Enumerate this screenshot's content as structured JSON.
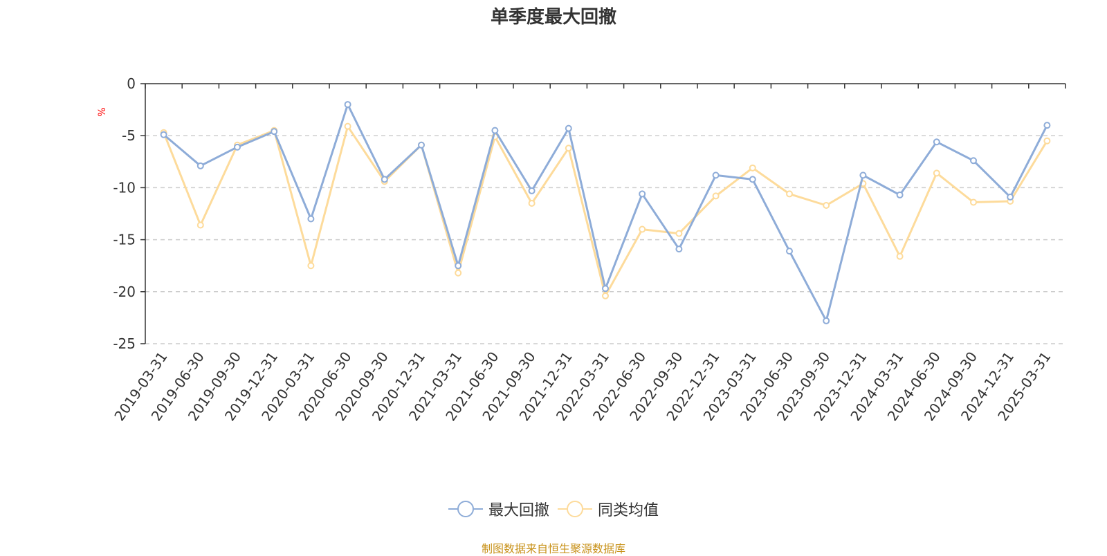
{
  "title": "单季度最大回撤",
  "source_text": "制图数据来自恒生聚源数据库",
  "colors": {
    "series1": "#8eacd8",
    "series2": "#fddb9b",
    "title": "#333333",
    "axis": "#333333",
    "grid": "#cccccc",
    "unit": "#ff0000",
    "source": "#c8921a"
  },
  "chart_data": {
    "type": "line",
    "ylabel": "%",
    "ylim": [
      -25,
      0
    ],
    "yticks": [
      0,
      -5,
      -10,
      -15,
      -20,
      -25
    ],
    "grid": true,
    "legend_position": "bottom",
    "x": [
      "2019-03-31",
      "2019-06-30",
      "2019-09-30",
      "2019-12-31",
      "2020-03-31",
      "2020-06-30",
      "2020-09-30",
      "2020-12-31",
      "2021-03-31",
      "2021-06-30",
      "2021-09-30",
      "2021-12-31",
      "2022-03-31",
      "2022-06-30",
      "2022-09-30",
      "2022-12-31",
      "2023-03-31",
      "2023-06-30",
      "2023-09-30",
      "2023-12-31",
      "2024-03-31",
      "2024-06-30",
      "2024-09-30",
      "2024-12-31",
      "2025-03-31"
    ],
    "series": [
      {
        "name": "最大回撤",
        "values": [
          -4.9,
          -7.9,
          -6.1,
          -4.6,
          -13.0,
          -2.0,
          -9.2,
          -5.9,
          -17.5,
          -4.5,
          -10.3,
          -4.3,
          -19.7,
          -10.6,
          -15.9,
          -8.8,
          -9.2,
          -16.1,
          -22.8,
          -8.8,
          -10.7,
          -5.6,
          -7.4,
          -10.9,
          -4.0
        ]
      },
      {
        "name": "同类均值",
        "values": [
          -4.7,
          -13.6,
          -5.9,
          -4.5,
          -17.5,
          -4.1,
          -9.4,
          -5.9,
          -18.2,
          -5.1,
          -11.5,
          -6.2,
          -20.4,
          -14.0,
          -14.4,
          -10.8,
          -8.1,
          -10.6,
          -11.7,
          -9.6,
          -16.6,
          -8.6,
          -11.4,
          -11.3,
          -5.5
        ]
      }
    ]
  }
}
